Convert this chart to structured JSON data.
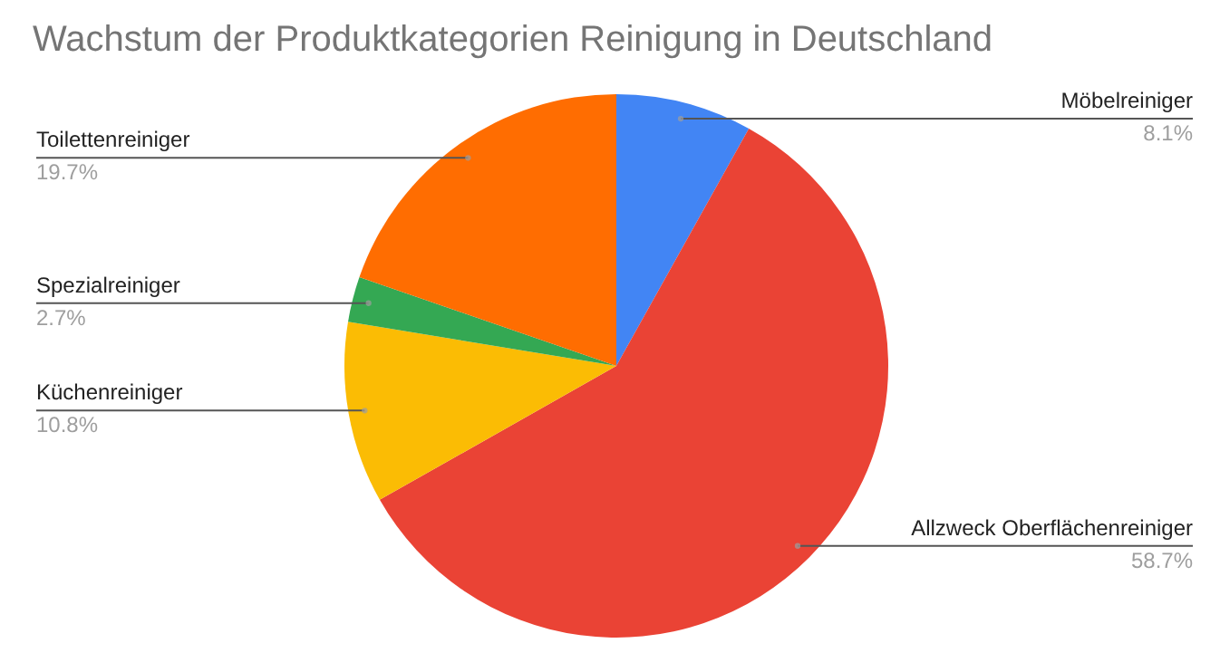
{
  "chart_data": {
    "type": "pie",
    "title": "Wachstum der Produktkategorien Reinigung in Deutschland",
    "categories": [
      "Möbelreiniger",
      "Allzweck Oberflächenreiniger",
      "Küchenreiniger",
      "Spezialreiniger",
      "Toilettenreiniger"
    ],
    "values": [
      8.1,
      58.7,
      10.8,
      2.7,
      19.7
    ],
    "colors": [
      "#4285f4",
      "#ea4335",
      "#fbbc04",
      "#34a853",
      "#ff6d01"
    ],
    "value_labels": [
      "8.1%",
      "58.7%",
      "10.8%",
      "2.7%",
      "19.7%"
    ]
  }
}
